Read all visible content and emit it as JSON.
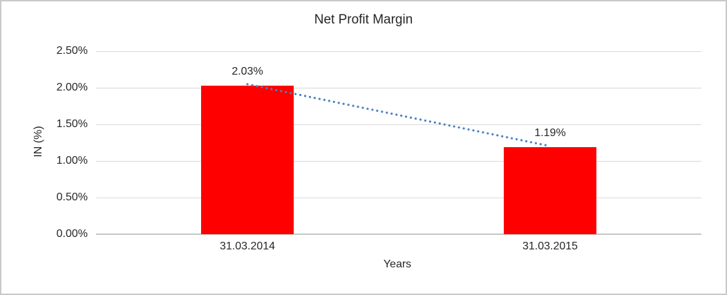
{
  "chart_data": {
    "type": "bar",
    "title": "Net Profit Margin",
    "categories": [
      "31.03.2014",
      "31.03.2015"
    ],
    "values": [
      2.03,
      1.19
    ],
    "data_labels": [
      "2.03%",
      "1.19%"
    ],
    "xlabel": "Years",
    "ylabel": "IN (%)",
    "ylim": [
      0,
      2.5
    ],
    "ytick_step": 0.5,
    "ytick_labels": [
      "0.00%",
      "0.50%",
      "1.00%",
      "1.50%",
      "2.00%",
      "2.50%"
    ],
    "grid": true,
    "legend": false,
    "bar_color": "#ff0000",
    "gridline_color": "#d9d9d9",
    "trendline": {
      "style": "dotted",
      "color": "#4a82c2",
      "from_value": 2.03,
      "to_value": 1.19
    }
  }
}
